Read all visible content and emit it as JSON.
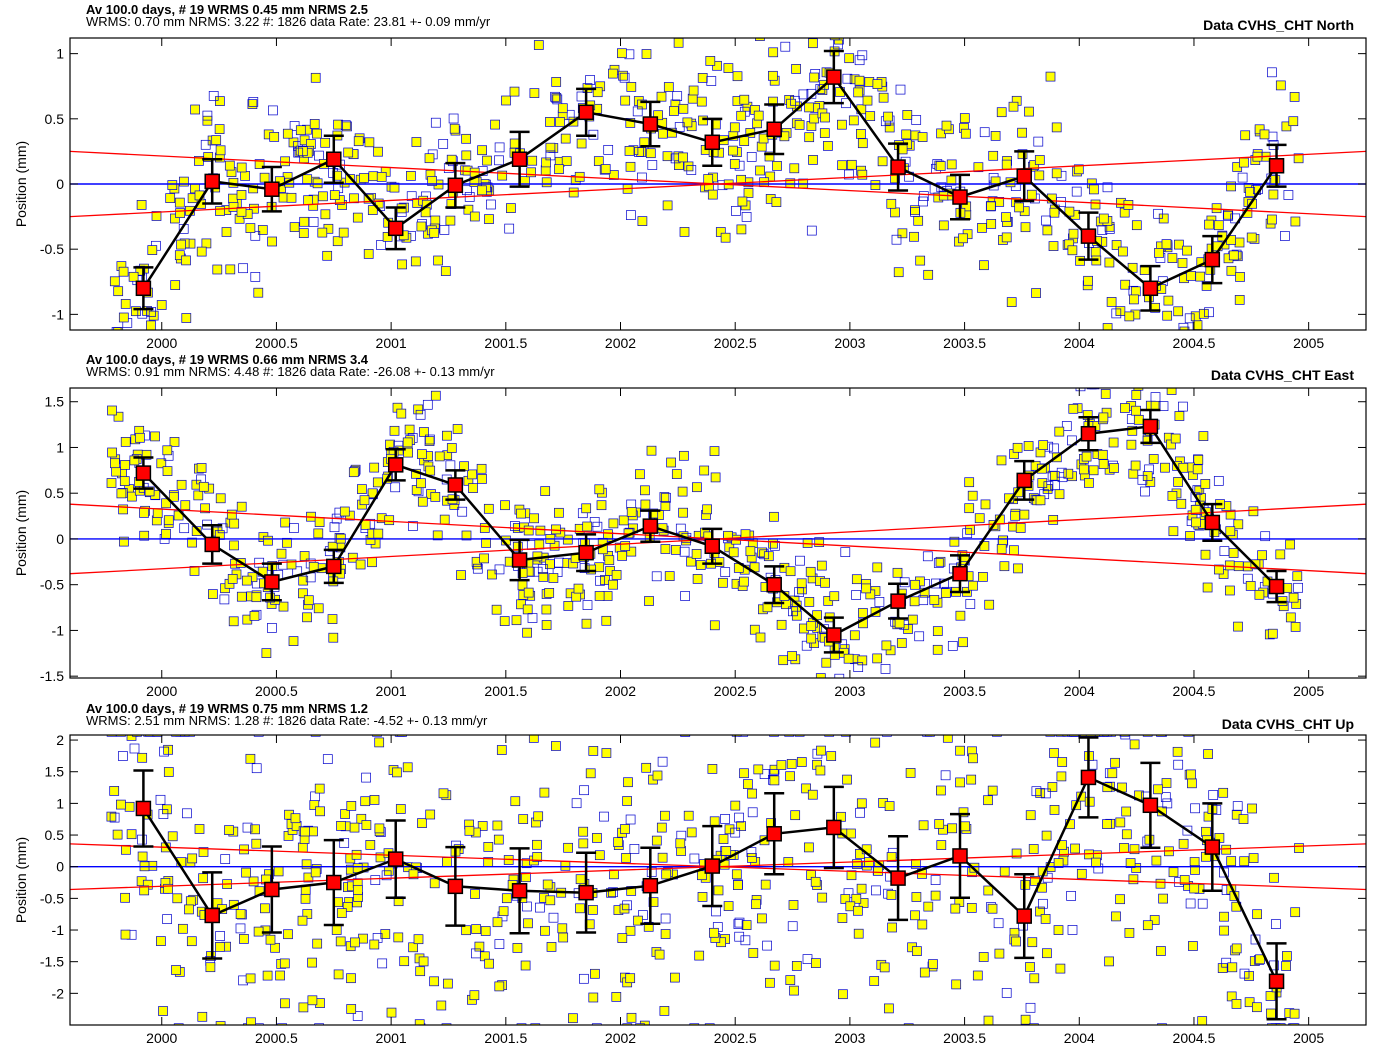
{
  "chart_data": [
    {
      "type": "scatter",
      "header_line1": "Av  100.0 days, # 19  WRMS   0.45 mm NRMS    2.5",
      "header_line2": "WRMS:     0.70 mm NRMS:  3.22 #:  1826 data  Rate:     23.81 +-   0.09 mm/yr",
      "title": "Data CVHS_CHT North",
      "ylabel": "Position (mm)",
      "xlim": [
        1999.6,
        2005.25
      ],
      "ylim": [
        -1.12,
        1.12
      ],
      "x_ticks": [
        2000,
        2000.5,
        2001,
        2001.5,
        2002,
        2002.5,
        2003,
        2003.5,
        2004,
        2004.5,
        2005
      ],
      "x_tick_labels": [
        "2000",
        "2000.5",
        "2001",
        "2001.5",
        "2002",
        "2002.5",
        "2003",
        "2003.5",
        "2004",
        "2004.5",
        "2005"
      ],
      "y_ticks": [
        -1,
        -0.5,
        0,
        0.5,
        1
      ],
      "y_tick_labels": [
        "-1",
        "-0.5",
        "0",
        "0.5",
        "1"
      ],
      "scatter_sd": 0.33,
      "averages": {
        "x": [
          1999.92,
          2000.22,
          2000.48,
          2000.75,
          2001.02,
          2001.28,
          2001.56,
          2001.85,
          2002.13,
          2002.4,
          2002.67,
          2002.93,
          2003.21,
          2003.48,
          2003.76,
          2004.04,
          2004.31,
          2004.58,
          2004.86
        ],
        "y": [
          -0.8,
          0.02,
          -0.04,
          0.19,
          -0.34,
          -0.01,
          0.19,
          0.55,
          0.46,
          0.32,
          0.42,
          0.82,
          0.13,
          -0.1,
          0.06,
          -0.4,
          -0.8,
          -0.58,
          0.14
        ],
        "err": [
          0.16,
          0.17,
          0.17,
          0.18,
          0.16,
          0.17,
          0.21,
          0.18,
          0.17,
          0.18,
          0.19,
          0.2,
          0.18,
          0.17,
          0.19,
          0.18,
          0.17,
          0.18,
          0.16
        ]
      },
      "envelope": [
        [
          1999.6,
          0.25,
          -0.25
        ],
        [
          2005.25,
          -0.25,
          0.25
        ]
      ]
    },
    {
      "type": "scatter",
      "header_line1": "Av  100.0 days, # 19  WRMS   0.66 mm NRMS    3.4",
      "header_line2": "WRMS:     0.91 mm NRMS:  4.48 #:  1826 data  Rate:    -26.08 +-   0.13 mm/yr",
      "title": "Data CVHS_CHT East",
      "ylabel": "Position (mm)",
      "xlim": [
        1999.6,
        2005.25
      ],
      "ylim": [
        -1.52,
        1.65
      ],
      "x_ticks": [
        2000,
        2000.5,
        2001,
        2001.5,
        2002,
        2002.5,
        2003,
        2003.5,
        2004,
        2004.5,
        2005
      ],
      "x_tick_labels": [
        "2000",
        "2000.5",
        "2001",
        "2001.5",
        "2002",
        "2002.5",
        "2003",
        "2003.5",
        "2004",
        "2004.5",
        "2005"
      ],
      "y_ticks": [
        -1.5,
        -1,
        -0.5,
        0,
        0.5,
        1,
        1.5
      ],
      "y_tick_labels": [
        "-1.5",
        "-1",
        "-0.5",
        "0",
        "0.5",
        "1",
        "1.5"
      ],
      "scatter_sd": 0.38,
      "averages": {
        "x": [
          1999.92,
          2000.22,
          2000.48,
          2000.75,
          2001.02,
          2001.28,
          2001.56,
          2001.85,
          2002.13,
          2002.4,
          2002.67,
          2002.93,
          2003.21,
          2003.48,
          2003.76,
          2004.04,
          2004.31,
          2004.58,
          2004.86
        ],
        "y": [
          0.72,
          -0.06,
          -0.47,
          -0.3,
          0.81,
          0.59,
          -0.23,
          -0.15,
          0.14,
          -0.08,
          -0.5,
          -1.05,
          -0.68,
          -0.38,
          0.64,
          1.15,
          1.23,
          0.18,
          -0.52
        ],
        "err": [
          0.17,
          0.21,
          0.2,
          0.18,
          0.17,
          0.16,
          0.22,
          0.2,
          0.17,
          0.19,
          0.2,
          0.19,
          0.19,
          0.2,
          0.21,
          0.18,
          0.18,
          0.2,
          0.17
        ]
      },
      "envelope": [
        [
          1999.6,
          -0.38,
          0.38
        ],
        [
          2005.25,
          0.38,
          -0.38
        ]
      ]
    },
    {
      "type": "scatter",
      "header_line1": "Av  100.0 days, # 19  WRMS   0.75 mm NRMS    1.2",
      "header_line2": "WRMS:     2.51 mm NRMS:  1.28 #:  1826 data  Rate:     -4.52 +-   0.13 mm/yr",
      "title": "Data CVHS_CHT Up",
      "ylabel": "Position (mm)",
      "xlim": [
        1999.6,
        2005.25
      ],
      "ylim": [
        -2.5,
        2.08
      ],
      "x_ticks": [
        2000,
        2000.5,
        2001,
        2001.5,
        2002,
        2002.5,
        2003,
        2003.5,
        2004,
        2004.5,
        2005
      ],
      "x_tick_labels": [
        "2000",
        "2000.5",
        "2001",
        "2001.5",
        "2002",
        "2002.5",
        "2003",
        "2003.5",
        "2004",
        "2004.5",
        "2005"
      ],
      "y_ticks": [
        -2,
        -1.5,
        -1,
        -0.5,
        0,
        0.5,
        1,
        1.5,
        2
      ],
      "y_tick_labels": [
        "-2",
        "-1.5",
        "-1",
        "-0.5",
        "0",
        "0.5",
        "1",
        "1.5",
        "2"
      ],
      "scatter_sd": 1.25,
      "averages": {
        "x": [
          1999.92,
          2000.22,
          2000.48,
          2000.75,
          2001.02,
          2001.28,
          2001.56,
          2001.85,
          2002.13,
          2002.4,
          2002.67,
          2002.93,
          2003.21,
          2003.48,
          2003.76,
          2004.04,
          2004.31,
          2004.58,
          2004.86
        ],
        "y": [
          0.92,
          -0.77,
          -0.36,
          -0.25,
          0.12,
          -0.31,
          -0.38,
          -0.41,
          -0.3,
          0.01,
          0.52,
          0.62,
          -0.18,
          0.17,
          -0.78,
          1.41,
          0.97,
          0.31,
          -1.81
        ],
        "err": [
          0.6,
          0.68,
          0.68,
          0.67,
          0.61,
          0.62,
          0.67,
          0.63,
          0.6,
          0.63,
          0.64,
          0.64,
          0.66,
          0.66,
          0.66,
          0.63,
          0.67,
          0.69,
          0.6
        ]
      },
      "envelope": [
        [
          1999.6,
          -0.36,
          0.36
        ],
        [
          2005.25,
          0.36,
          -0.36
        ]
      ]
    }
  ],
  "colors": {
    "scatter_fill": "#ffff00",
    "scatter_edge": "#0000cc",
    "zero_line": "#0000ff",
    "envelope": "#ff0000",
    "average_fill": "#ff0000",
    "average_line": "#000000"
  }
}
